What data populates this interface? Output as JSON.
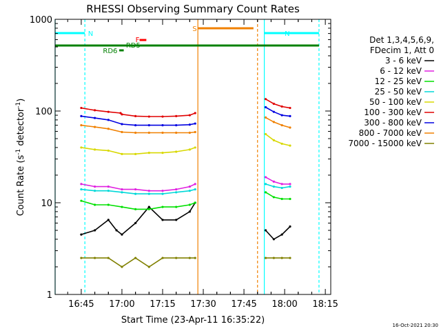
{
  "chart_data": {
    "type": "line",
    "title": "RHESSI Observing Summary Count Rates",
    "xlabel": "Start Time (23-Apr-11 16:35:22)",
    "ylabel_main": "Count Rate (s",
    "ylabel_sup1": "-1",
    "ylabel_mid": " detector",
    "ylabel_sup2": "-1",
    "ylabel_end": ")",
    "x_start": "16:35:22",
    "xlim": [
      "16:35:22",
      "18:17:00"
    ],
    "ylim": [
      1,
      1000
    ],
    "yscale": "log",
    "grid": false,
    "x_ticks": [
      "16:45",
      "17:00",
      "17:15",
      "17:30",
      "17:45",
      "18:00",
      "18:15"
    ],
    "y_ticks": [
      "1",
      "10",
      "100",
      "1000"
    ],
    "timestamp": "16-Oct-2021 20:30",
    "legend": {
      "placement": "right",
      "header1": "Det 1,3,4,5,6,9,",
      "header2": "FDecim 1, Att 0",
      "entries": [
        {
          "label": "3 - 6 keV",
          "color": "#000000"
        },
        {
          "label": "6 - 12 keV",
          "color": "#e020e0"
        },
        {
          "label": "12 - 25 keV",
          "color": "#00e000"
        },
        {
          "label": "25 - 50 keV",
          "color": "#00d8d8"
        },
        {
          "label": "50 - 100 keV",
          "color": "#d8d800"
        },
        {
          "label": "100 - 300 keV",
          "color": "#e00000"
        },
        {
          "label": "300 - 800 keV",
          "color": "#0000e0"
        },
        {
          "label": "800 - 7000 keV",
          "color": "#f08000"
        },
        {
          "label": "7000 - 15000 keV",
          "color": "#808000"
        }
      ]
    },
    "markers": [
      {
        "label": "N",
        "color": "#00ffff"
      },
      {
        "label": "S",
        "color": "#f08000"
      },
      {
        "label": "F",
        "color": "#ff0000"
      },
      {
        "label": "RD6",
        "color": "#008000"
      },
      {
        "label": "RD5",
        "color": "#008000"
      }
    ],
    "series": [
      {
        "label": "3 - 6 keV",
        "color": "#000000",
        "segments": [
          {
            "x": [
              "16:45:00",
              "16:50:00",
              "16:55:00",
              "16:58:00",
              "17:00:00",
              "17:05:00",
              "17:10:00",
              "17:15:00",
              "17:20:00",
              "17:25:00",
              "17:27:00"
            ],
            "y": [
              4.5,
              5.0,
              6.5,
              5.0,
              4.5,
              6.0,
              9.0,
              6.5,
              6.5,
              8.0,
              10.0
            ]
          },
          {
            "x": [
              "17:53:00",
              "17:56:00",
              "17:59:00",
              "18:02:00"
            ],
            "y": [
              5.0,
              4.0,
              4.5,
              5.5
            ]
          }
        ]
      },
      {
        "label": "6 - 12 keV",
        "color": "#e020e0",
        "segments": [
          {
            "x": [
              "16:45:00",
              "16:50:00",
              "16:55:00",
              "17:00:00",
              "17:05:00",
              "17:10:00",
              "17:15:00",
              "17:20:00",
              "17:25:00",
              "17:27:00"
            ],
            "y": [
              16,
              15,
              15,
              14,
              14,
              13.5,
              13.5,
              14,
              15,
              16
            ]
          },
          {
            "x": [
              "17:53:00",
              "17:56:00",
              "17:59:00",
              "18:02:00"
            ],
            "y": [
              19,
              17,
              16,
              16
            ]
          }
        ]
      },
      {
        "label": "12 - 25 keV",
        "color": "#00e000",
        "segments": [
          {
            "x": [
              "16:45:00",
              "16:50:00",
              "16:55:00",
              "17:00:00",
              "17:05:00",
              "17:10:00",
              "17:15:00",
              "17:20:00",
              "17:25:00",
              "17:27:00"
            ],
            "y": [
              10.5,
              9.5,
              9.5,
              9.0,
              8.5,
              8.5,
              9.0,
              9.0,
              9.5,
              10.0
            ]
          },
          {
            "x": [
              "17:53:00",
              "17:56:00",
              "17:59:00",
              "18:02:00"
            ],
            "y": [
              13,
              11.5,
              11,
              11
            ]
          }
        ]
      },
      {
        "label": "25 - 50 keV",
        "color": "#00d8d8",
        "segments": [
          {
            "x": [
              "16:45:00",
              "16:50:00",
              "16:55:00",
              "17:00:00",
              "17:05:00",
              "17:10:00",
              "17:15:00",
              "17:20:00",
              "17:25:00",
              "17:27:00"
            ],
            "y": [
              14,
              13.5,
              13.5,
              13,
              12.5,
              12.5,
              12.5,
              13,
              13.5,
              14
            ]
          },
          {
            "x": [
              "17:53:00",
              "17:56:00",
              "17:59:00",
              "18:02:00"
            ],
            "y": [
              16,
              15,
              14.5,
              15
            ]
          }
        ]
      },
      {
        "label": "50 - 100 keV",
        "color": "#d8d800",
        "segments": [
          {
            "x": [
              "16:45:00",
              "16:50:00",
              "16:55:00",
              "17:00:00",
              "17:05:00",
              "17:10:00",
              "17:15:00",
              "17:20:00",
              "17:25:00",
              "17:27:00"
            ],
            "y": [
              40,
              38,
              37,
              34,
              34,
              35,
              35,
              36,
              38,
              40
            ]
          },
          {
            "x": [
              "17:53:00",
              "17:56:00",
              "17:59:00",
              "18:02:00"
            ],
            "y": [
              56,
              48,
              44,
              42
            ]
          }
        ]
      },
      {
        "label": "100 - 300 keV",
        "color": "#e00000",
        "segments": [
          {
            "x": [
              "16:45:00",
              "16:50:00",
              "16:55:00",
              "16:59:30",
              "17:00:00",
              "17:05:00",
              "17:10:00",
              "17:15:00",
              "17:20:00",
              "17:25:00",
              "17:27:00"
            ],
            "y": [
              108,
              102,
              98,
              95,
              92,
              88,
              87,
              87,
              88,
              90,
              95
            ]
          },
          {
            "x": [
              "17:53:00",
              "17:56:00",
              "17:59:00",
              "18:02:00"
            ],
            "y": [
              135,
              120,
              112,
              108
            ]
          }
        ]
      },
      {
        "label": "300 - 800 keV",
        "color": "#0000e0",
        "segments": [
          {
            "x": [
              "16:45:00",
              "16:50:00",
              "16:55:00",
              "17:00:00",
              "17:05:00",
              "17:10:00",
              "17:15:00",
              "17:20:00",
              "17:25:00",
              "17:27:00"
            ],
            "y": [
              88,
              84,
              80,
              72,
              70,
              70,
              70,
              70,
              71,
              73
            ]
          },
          {
            "x": [
              "17:53:00",
              "17:56:00",
              "17:59:00",
              "18:02:00"
            ],
            "y": [
              110,
              98,
              90,
              88
            ]
          }
        ]
      },
      {
        "label": "800 - 7000 keV",
        "color": "#f08000",
        "segments": [
          {
            "x": [
              "16:45:00",
              "16:50:00",
              "16:55:00",
              "17:00:00",
              "17:05:00",
              "17:10:00",
              "17:15:00",
              "17:20:00",
              "17:25:00",
              "17:27:00"
            ],
            "y": [
              70,
              67,
              64,
              59,
              58,
              58,
              58,
              58,
              58,
              59
            ]
          },
          {
            "x": [
              "17:53:00",
              "17:56:00",
              "17:59:00",
              "18:02:00"
            ],
            "y": [
              85,
              76,
              70,
              66
            ]
          }
        ]
      },
      {
        "label": "7000 - 15000 keV",
        "color": "#808000",
        "segments": [
          {
            "x": [
              "16:45:00",
              "16:50:00",
              "16:55:00",
              "17:00:00",
              "17:05:00",
              "17:10:00",
              "17:15:00",
              "17:20:00",
              "17:25:00",
              "17:27:00"
            ],
            "y": [
              2.5,
              2.5,
              2.5,
              2.0,
              2.5,
              2.0,
              2.5,
              2.5,
              2.5,
              2.5
            ]
          },
          {
            "x": [
              "17:53:00",
              "17:56:00",
              "17:59:00",
              "18:02:00"
            ],
            "y": [
              2.5,
              2.5,
              2.5,
              2.5
            ]
          }
        ]
      }
    ]
  }
}
